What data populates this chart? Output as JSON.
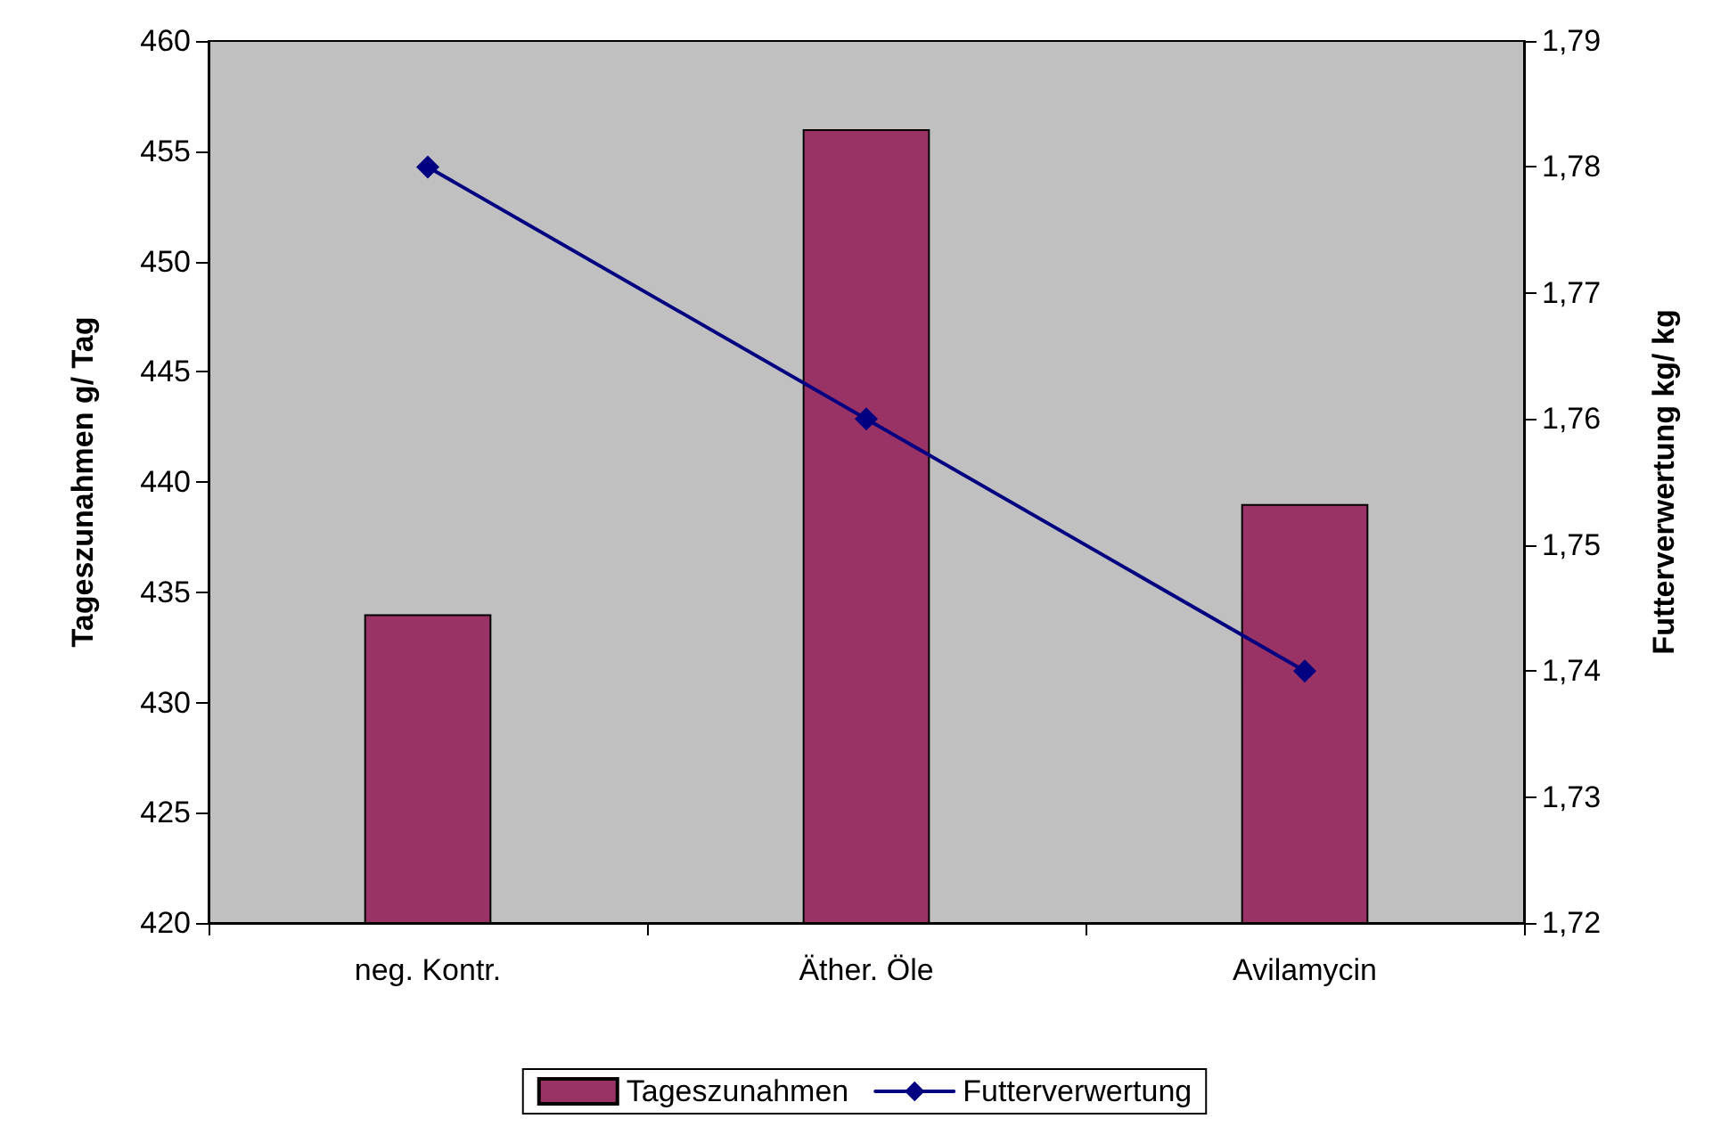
{
  "chart_data": {
    "type": "bar",
    "categories": [
      "neg. Kontr.",
      "Äther. Öle",
      "Avilamycin"
    ],
    "ylabel": "Tageszunahmen g/ Tag",
    "y2label": "Futterverwertung kg/ kg",
    "ylim": [
      420,
      460
    ],
    "yticks": [
      420,
      425,
      430,
      435,
      440,
      445,
      450,
      455,
      460
    ],
    "y2lim": [
      1.72,
      1.79
    ],
    "y2ticks": [
      {
        "value": 1.72,
        "label": "1,72"
      },
      {
        "value": 1.73,
        "label": "1,73"
      },
      {
        "value": 1.74,
        "label": "1,74"
      },
      {
        "value": 1.75,
        "label": "1,75"
      },
      {
        "value": 1.76,
        "label": "1,76"
      },
      {
        "value": 1.77,
        "label": "1,77"
      },
      {
        "value": 1.78,
        "label": "1,78"
      },
      {
        "value": 1.79,
        "label": "1,79"
      }
    ],
    "grid": false,
    "legend": "bottom",
    "series": [
      {
        "name": "Tageszunahmen",
        "color": "#993366",
        "values": [
          434,
          456,
          439
        ]
      },
      {
        "name": "Futterverwertung",
        "type": "line",
        "axis": "y2",
        "color": "#000080",
        "marker": "diamond",
        "line_style": "solid",
        "values": [
          1.78,
          1.76,
          1.74
        ]
      }
    ]
  }
}
